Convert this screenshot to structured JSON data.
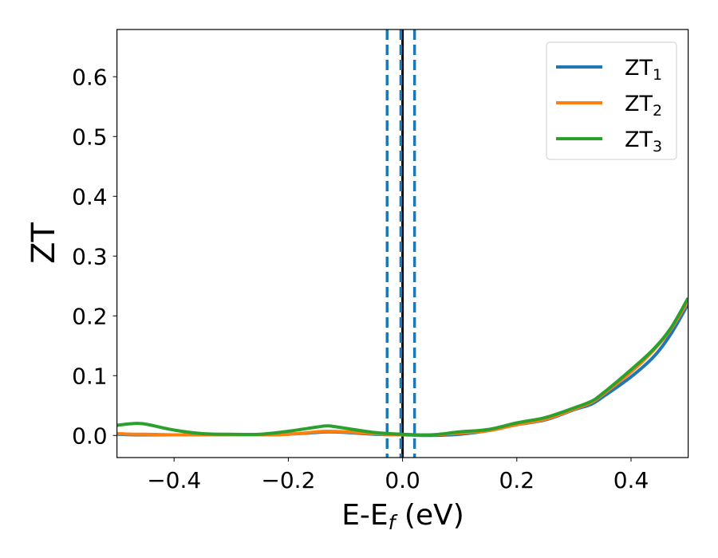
{
  "chart_data": {
    "type": "line",
    "title": "",
    "xlabel": "E-E",
    "xlabel_sub": "f",
    "xlabel_unit": " (eV)",
    "ylabel": "ZT",
    "xlim": [
      -0.5,
      0.5
    ],
    "ylim": [
      -0.037,
      0.679
    ],
    "xticks": [
      -0.4,
      -0.2,
      0.0,
      0.2,
      0.4
    ],
    "xtick_labels": [
      "−0.4",
      "−0.2",
      "0.0",
      "0.2",
      "0.4"
    ],
    "yticks": [
      0.0,
      0.1,
      0.2,
      0.3,
      0.4,
      0.5,
      0.6
    ],
    "ytick_labels": [
      "0.0",
      "0.1",
      "0.2",
      "0.3",
      "0.4",
      "0.5",
      "0.6"
    ],
    "grid": false,
    "legend": "top-right",
    "x": [
      -0.5,
      -0.47,
      -0.45,
      -0.4,
      -0.35,
      -0.3,
      -0.25,
      -0.2,
      -0.15,
      -0.13,
      -0.1,
      -0.05,
      0,
      0.05,
      0.1,
      0.15,
      0.2,
      0.25,
      0.3,
      0.33,
      0.35,
      0.4,
      0.44,
      0.47,
      0.5
    ],
    "series": [
      {
        "name": "ZT",
        "sub": "1",
        "color": "#1f77b4",
        "values": [
          0.002,
          0.001,
          0.001,
          0.001,
          0.001,
          0.001,
          0.001,
          0.002,
          0.005,
          0.006,
          0.005,
          0.002,
          0.001,
          0.0,
          0.002,
          0.008,
          0.018,
          0.026,
          0.043,
          0.052,
          0.064,
          0.098,
          0.132,
          0.17,
          0.22
        ]
      },
      {
        "name": "ZT",
        "sub": "2",
        "color": "#ff7f0e",
        "values": [
          0.003,
          0.002,
          0.002,
          0.001,
          0.001,
          0.001,
          0.001,
          0.002,
          0.006,
          0.007,
          0.006,
          0.003,
          0.001,
          0.001,
          0.004,
          0.008,
          0.018,
          0.027,
          0.044,
          0.055,
          0.068,
          0.106,
          0.143,
          0.178,
          0.225
        ]
      },
      {
        "name": "ZT",
        "sub": "3",
        "color": "#2ca02c",
        "values": [
          0.017,
          0.02,
          0.019,
          0.009,
          0.003,
          0.002,
          0.002,
          0.007,
          0.014,
          0.016,
          0.012,
          0.005,
          0.002,
          0.001,
          0.006,
          0.01,
          0.021,
          0.03,
          0.046,
          0.057,
          0.07,
          0.11,
          0.145,
          0.18,
          0.23
        ]
      }
    ],
    "vlines": [
      {
        "x": 0.0,
        "color": "#000000",
        "style": "solid"
      },
      {
        "x": -0.027,
        "color": "#1f77b4",
        "style": "dashed"
      },
      {
        "x": -0.003,
        "color": "#1f77b4",
        "style": "dashed"
      },
      {
        "x": 0.021,
        "color": "#1f77b4",
        "style": "dashed"
      }
    ]
  }
}
